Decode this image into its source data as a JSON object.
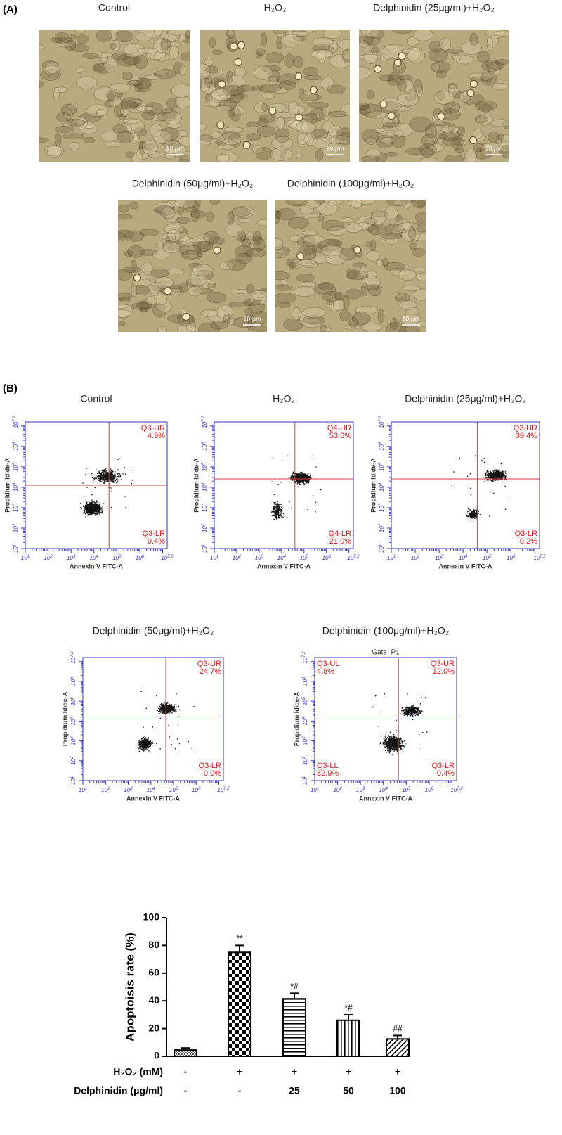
{
  "panel_a": {
    "label": "(A)",
    "images": [
      {
        "title": "Control",
        "scale": "10 μm"
      },
      {
        "title": "H₂O₂",
        "scale": "10 μm"
      },
      {
        "title": "Delphinidin (25μg/ml)+H₂O₂",
        "scale": "10 μm"
      },
      {
        "title": "Delphinidin (50μg/ml)+H₂O₂",
        "scale": "10 μm"
      },
      {
        "title": "Delphinidin (100μg/ml)+H₂O₂",
        "scale": "10 μm"
      }
    ]
  },
  "panel_b": {
    "label": "(B)",
    "x_label": "Annexin V FITC-A",
    "y_label": "Propidium Idide-A",
    "ticks": [
      {
        "base": "10",
        "exp": "1"
      },
      {
        "base": "10",
        "exp": "2"
      },
      {
        "base": "10",
        "exp": "3"
      },
      {
        "base": "10",
        "exp": "4"
      },
      {
        "base": "10",
        "exp": "5"
      },
      {
        "base": "10",
        "exp": "6"
      },
      {
        "base": "10",
        "exp": "7.2"
      }
    ],
    "plots": [
      {
        "title": "Control",
        "quadrants": [
          {
            "corner": "ur",
            "name": "Q3-UR",
            "value": "4.9%"
          },
          {
            "corner": "lr",
            "name": "Q3-LR",
            "value": "0.4%"
          }
        ]
      },
      {
        "title": "H₂O₂",
        "quadrants": [
          {
            "corner": "ur",
            "name": "Q4-UR",
            "value": "53.6%"
          },
          {
            "corner": "lr",
            "name": "Q4-LR",
            "value": "21.0%"
          }
        ]
      },
      {
        "title": "Delphinidin (25μg/ml)+H₂O₂",
        "quadrants": [
          {
            "corner": "ur",
            "name": "Q3-UR",
            "value": "39.4%"
          },
          {
            "corner": "lr",
            "name": "Q3-LR",
            "value": "0.2%"
          }
        ]
      },
      {
        "title": "Delphinidin (50μg/ml)+H₂O₂",
        "quadrants": [
          {
            "corner": "ur",
            "name": "Q3-UR",
            "value": "24.7%"
          },
          {
            "corner": "lr",
            "name": "Q3-LR",
            "value": "0.0%"
          }
        ]
      },
      {
        "title": "Delphinidin (100μg/ml)+H₂O₂",
        "gate": "Gate: P1",
        "quadrants": [
          {
            "corner": "ul",
            "name": "Q3-UL",
            "value": "4.8%"
          },
          {
            "corner": "ur",
            "name": "Q3-UR",
            "value": "12.0%"
          },
          {
            "corner": "ll",
            "name": "Q3-LL",
            "value": "82.9%"
          },
          {
            "corner": "lr",
            "name": "Q3-LR",
            "value": "0.4%"
          }
        ]
      }
    ]
  },
  "chart_data": {
    "type": "bar",
    "y_label": "Apoptoisis rate (%)",
    "values": [
      4.5,
      75,
      41.5,
      26,
      12.5
    ],
    "errors": [
      1.5,
      5,
      4,
      4,
      2.5
    ],
    "annotations": [
      null,
      "**",
      "*#",
      "*#",
      "##"
    ],
    "patterns": [
      "crosshatch",
      "checker",
      "horizontal",
      "vertical",
      "diagonal"
    ],
    "color": "#000000",
    "rows": [
      {
        "label": "H₂O₂ (mM)",
        "values": [
          "-",
          "+",
          "+",
          "+",
          "+"
        ]
      },
      {
        "label": "Delphinidin (μg/ml)",
        "values": [
          "-",
          "-",
          "25",
          "50",
          "100"
        ]
      }
    ],
    "ylim": [
      0,
      100
    ],
    "yticks": [
      0,
      20,
      40,
      60,
      80,
      100
    ]
  }
}
